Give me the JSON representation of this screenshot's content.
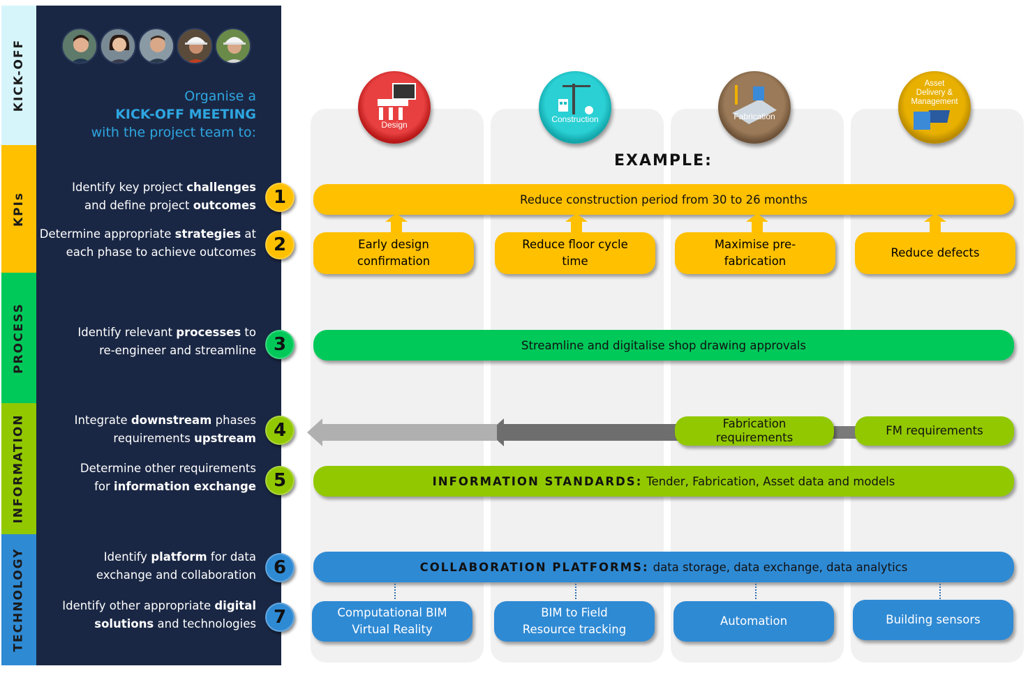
{
  "categories": [
    {
      "label": "KICK-OFF",
      "color": "#d6f5fb"
    },
    {
      "label": "KPIs",
      "color": "#ffc000"
    },
    {
      "label": "PROCESS",
      "color": "#00c95a"
    },
    {
      "label": "INFORMATION",
      "color": "#92c800"
    },
    {
      "label": "TECHNOLOGY",
      "color": "#2f8ad4"
    }
  ],
  "intro": {
    "line1": "Organise a",
    "line2": "KICK-OFF MEETING",
    "line3": "with the project team to:"
  },
  "steps": [
    {
      "num": "1",
      "a": "Identify key project ",
      "b": "challenges",
      "c": "and define project ",
      "d": "outcomes",
      "color": "#ffc000"
    },
    {
      "num": "2",
      "a": "Determine appropriate ",
      "b": "strategies",
      "a2": " at",
      "c": "each phase to achieve outcomes",
      "color": "#ffc000"
    },
    {
      "num": "3",
      "a": "Identify relevant ",
      "b": "processes",
      "a2": " to",
      "c": "re-engineer and streamline",
      "color": "#00c95a"
    },
    {
      "num": "4",
      "a": "Integrate ",
      "b": "downstream",
      "a2": " phases",
      "c": "requirements ",
      "d": "upstream",
      "color": "#92c800"
    },
    {
      "num": "5",
      "a": "Determine other requirements",
      "c": "for ",
      "d": "information exchange",
      "color": "#92c800"
    },
    {
      "num": "6",
      "a": "Identify ",
      "b": "platform",
      "a2": " for data",
      "c": "exchange and collaboration",
      "color": "#2f8ad4"
    },
    {
      "num": "7",
      "a": "Identify other appropriate ",
      "b": "digital",
      "c2": "solutions",
      "c": " and technologies",
      "color": "#2f8ad4"
    }
  ],
  "phases": [
    {
      "label": "Design",
      "color": "#d42a2a"
    },
    {
      "label": "Construction",
      "color": "#1fbcc0"
    },
    {
      "label": "Fabrication",
      "color": "#8b6a4a"
    },
    {
      "label": "Asset Delivery & Management",
      "line1": "Asset",
      "line2": "Delivery &",
      "line3": "Management",
      "color": "#d9a300"
    }
  ],
  "example_heading": "EXAMPLE:",
  "kpi_bar": "Reduce construction period from 30 to 26 months",
  "strategies": [
    {
      "line1": "Early design",
      "line2": "confirmation"
    },
    {
      "line1": "Reduce floor cycle",
      "line2": "time"
    },
    {
      "line1": "Maximise pre-",
      "line2": "fabrication"
    },
    {
      "line1": "Reduce  defects",
      "line2": ""
    }
  ],
  "process_bar": "Streamline and digitalise shop drawing approvals",
  "information": {
    "fabrication_line1": "Fabrication",
    "fabrication_line2": "requirements",
    "fm": "FM requirements",
    "standards_title": "INFORMATION STANDARDS:",
    "standards_text": "Tender, Fabrication, Asset data and models"
  },
  "technology": {
    "platform_title": "COLLABORATION PLATFORMS:",
    "platform_text": "data storage, data exchange, data analytics",
    "solutions": [
      {
        "line1": "Computational BIM",
        "line2": "Virtual Reality"
      },
      {
        "line1": "BIM to Field",
        "line2": "Resource tracking"
      },
      {
        "line1": "Automation",
        "line2": ""
      },
      {
        "line1": "Building sensors",
        "line2": ""
      }
    ]
  }
}
